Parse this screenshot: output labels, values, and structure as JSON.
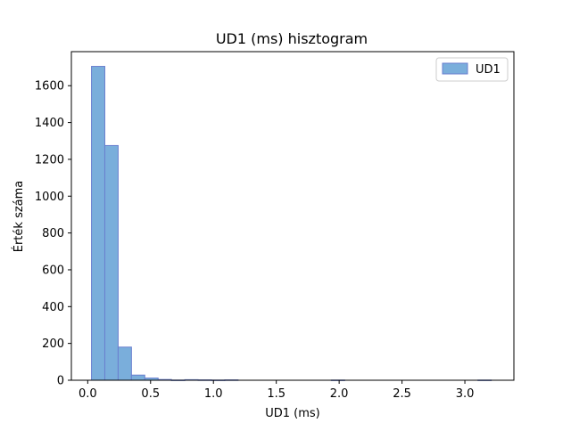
{
  "chart_data": {
    "type": "bar",
    "title": "UD1 (ms) hisztogram",
    "xlabel": "UD1 (ms)",
    "ylabel": "Érték száma",
    "xlim": [
      -0.13,
      3.39
    ],
    "ylim": [
      0,
      1785
    ],
    "xticks": [
      0.0,
      0.5,
      1.0,
      1.5,
      2.0,
      2.5,
      3.0
    ],
    "xtick_labels": [
      "0.0",
      "0.5",
      "1.0",
      "1.5",
      "2.0",
      "2.5",
      "3.0"
    ],
    "yticks": [
      0,
      200,
      400,
      600,
      800,
      1000,
      1200,
      1400,
      1600
    ],
    "ytick_labels": [
      "0",
      "200",
      "400",
      "600",
      "800",
      "1000",
      "1200",
      "1400",
      "1600"
    ],
    "grid": false,
    "legend": {
      "position": "top-right",
      "entries": [
        "UD1"
      ]
    },
    "bar_color": "#7aaedb",
    "edge_color": "#6a7fcf",
    "series": [
      {
        "name": "UD1",
        "bins": [
          {
            "x0": 0.03,
            "x1": 0.136,
            "value": 1705
          },
          {
            "x0": 0.136,
            "x1": 0.242,
            "value": 1275
          },
          {
            "x0": 0.242,
            "x1": 0.348,
            "value": 180
          },
          {
            "x0": 0.348,
            "x1": 0.454,
            "value": 28
          },
          {
            "x0": 0.454,
            "x1": 0.56,
            "value": 12
          },
          {
            "x0": 0.56,
            "x1": 0.666,
            "value": 4
          },
          {
            "x0": 0.666,
            "x1": 0.772,
            "value": 1
          },
          {
            "x0": 0.772,
            "x1": 0.878,
            "value": 3
          },
          {
            "x0": 0.878,
            "x1": 0.984,
            "value": 2
          },
          {
            "x0": 0.984,
            "x1": 1.09,
            "value": 1
          },
          {
            "x0": 1.09,
            "x1": 1.196,
            "value": 2
          },
          {
            "x0": 1.196,
            "x1": 1.302,
            "value": 0
          },
          {
            "x0": 1.302,
            "x1": 1.408,
            "value": 0
          },
          {
            "x0": 1.408,
            "x1": 1.514,
            "value": 0
          },
          {
            "x0": 1.514,
            "x1": 1.62,
            "value": 0
          },
          {
            "x0": 1.62,
            "x1": 1.726,
            "value": 0
          },
          {
            "x0": 1.726,
            "x1": 1.832,
            "value": 0
          },
          {
            "x0": 1.832,
            "x1": 1.938,
            "value": 0
          },
          {
            "x0": 1.938,
            "x1": 2.044,
            "value": 1
          },
          {
            "x0": 2.044,
            "x1": 2.15,
            "value": 0
          },
          {
            "x0": 2.15,
            "x1": 2.256,
            "value": 0
          },
          {
            "x0": 2.256,
            "x1": 2.362,
            "value": 0
          },
          {
            "x0": 2.362,
            "x1": 2.468,
            "value": 0
          },
          {
            "x0": 2.468,
            "x1": 2.574,
            "value": 0
          },
          {
            "x0": 2.574,
            "x1": 2.68,
            "value": 0
          },
          {
            "x0": 2.68,
            "x1": 2.786,
            "value": 0
          },
          {
            "x0": 2.786,
            "x1": 2.892,
            "value": 0
          },
          {
            "x0": 2.892,
            "x1": 2.998,
            "value": 0
          },
          {
            "x0": 2.998,
            "x1": 3.104,
            "value": 0
          },
          {
            "x0": 3.104,
            "x1": 3.21,
            "value": 1
          }
        ]
      }
    ]
  }
}
